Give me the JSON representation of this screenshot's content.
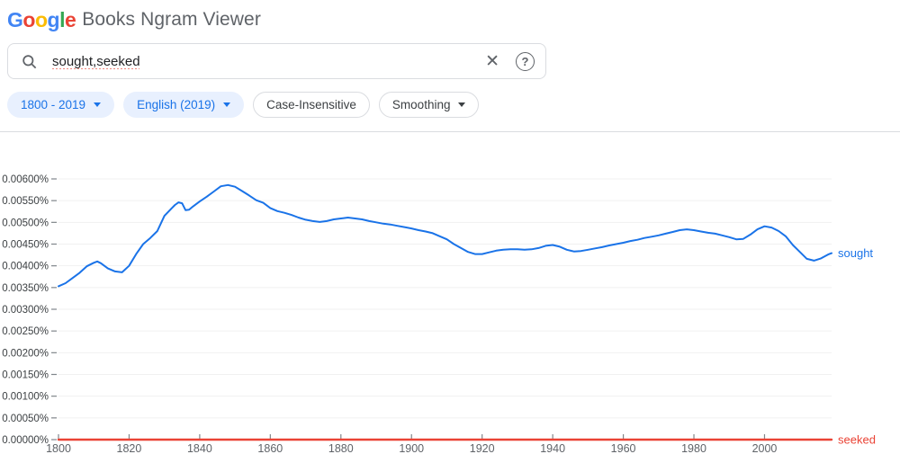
{
  "header": {
    "logo_letters": [
      {
        "ch": "G",
        "color": "#4285F4"
      },
      {
        "ch": "o",
        "color": "#EA4335"
      },
      {
        "ch": "o",
        "color": "#FBBC05"
      },
      {
        "ch": "g",
        "color": "#4285F4"
      },
      {
        "ch": "l",
        "color": "#34A853"
      },
      {
        "ch": "e",
        "color": "#EA4335"
      }
    ],
    "title": "Books Ngram Viewer"
  },
  "search": {
    "query": "sought,seeked",
    "icons": {
      "search": "magnifying-glass",
      "clear": "✕",
      "help": "?"
    }
  },
  "filters": [
    {
      "label": "1800 - 2019",
      "caret": true,
      "variant": "active"
    },
    {
      "label": "English (2019)",
      "caret": true,
      "variant": "active"
    },
    {
      "label": "Case-Insensitive",
      "caret": false,
      "variant": "outlined"
    },
    {
      "label": "Smoothing",
      "caret": true,
      "variant": "outlined"
    }
  ],
  "colors": {
    "accent_blue": "#1a73e8",
    "series_red": "#ea4335",
    "chip_bg": "#e8f0fe",
    "chip_border": "#dadce0",
    "text_dark": "#202124",
    "text_gray": "#5f6368",
    "gridline": "#f1f1f1"
  },
  "chart_data": {
    "type": "line",
    "title": "",
    "xlabel": "",
    "ylabel": "",
    "grid": true,
    "legend_position": "labels-at-line-end",
    "xlim": [
      1800,
      2019
    ],
    "ylim": [
      0,
      0.006
    ],
    "xticks": {
      "values": [
        1800,
        1820,
        1840,
        1860,
        1880,
        1900,
        1920,
        1940,
        1960,
        1980,
        2000
      ],
      "labels": [
        "1800",
        "1820",
        "1840",
        "1860",
        "1880",
        "1900",
        "1920",
        "1940",
        "1960",
        "1980",
        "2000"
      ]
    },
    "yticks": {
      "values": [
        0,
        0.0005,
        0.001,
        0.0015,
        0.002,
        0.0025,
        0.003,
        0.0035,
        0.004,
        0.0045,
        0.005,
        0.0055,
        0.006
      ],
      "labels": [
        "0.00000%",
        "0.00050%",
        "0.00100%",
        "0.00150%",
        "0.00200%",
        "0.00250%",
        "0.00300%",
        "0.00350%",
        "0.00400%",
        "0.00450%",
        "0.00500%",
        "0.00550%",
        "0.00600%"
      ]
    },
    "series": [
      {
        "name": "sought",
        "color": "#1a73e8",
        "points": [
          [
            1800,
            0.00353
          ],
          [
            1802,
            0.0036
          ],
          [
            1804,
            0.00372
          ],
          [
            1806,
            0.00384
          ],
          [
            1808,
            0.00399
          ],
          [
            1810,
            0.00407
          ],
          [
            1811,
            0.0041
          ],
          [
            1812,
            0.00406
          ],
          [
            1814,
            0.00394
          ],
          [
            1816,
            0.00387
          ],
          [
            1818,
            0.00385
          ],
          [
            1820,
            0.004
          ],
          [
            1822,
            0.00427
          ],
          [
            1824,
            0.0045
          ],
          [
            1826,
            0.00464
          ],
          [
            1828,
            0.0048
          ],
          [
            1830,
            0.00515
          ],
          [
            1832,
            0.00532
          ],
          [
            1833,
            0.0054
          ],
          [
            1834,
            0.00546
          ],
          [
            1835,
            0.00544
          ],
          [
            1836,
            0.00528
          ],
          [
            1837,
            0.00529
          ],
          [
            1838,
            0.00536
          ],
          [
            1840,
            0.00548
          ],
          [
            1842,
            0.00559
          ],
          [
            1844,
            0.00571
          ],
          [
            1846,
            0.00583
          ],
          [
            1848,
            0.00586
          ],
          [
            1850,
            0.00582
          ],
          [
            1852,
            0.00572
          ],
          [
            1854,
            0.00562
          ],
          [
            1856,
            0.00551
          ],
          [
            1858,
            0.00545
          ],
          [
            1860,
            0.00533
          ],
          [
            1862,
            0.00526
          ],
          [
            1864,
            0.00522
          ],
          [
            1866,
            0.00517
          ],
          [
            1868,
            0.00511
          ],
          [
            1870,
            0.00506
          ],
          [
            1872,
            0.00503
          ],
          [
            1874,
            0.00501
          ],
          [
            1876,
            0.00503
          ],
          [
            1878,
            0.00507
          ],
          [
            1880,
            0.00509
          ],
          [
            1882,
            0.00511
          ],
          [
            1884,
            0.00509
          ],
          [
            1886,
            0.00507
          ],
          [
            1888,
            0.00503
          ],
          [
            1890,
            0.005
          ],
          [
            1892,
            0.00497
          ],
          [
            1894,
            0.00495
          ],
          [
            1896,
            0.00492
          ],
          [
            1898,
            0.00489
          ],
          [
            1900,
            0.00486
          ],
          [
            1902,
            0.00482
          ],
          [
            1904,
            0.00479
          ],
          [
            1906,
            0.00475
          ],
          [
            1908,
            0.00468
          ],
          [
            1910,
            0.00461
          ],
          [
            1912,
            0.0045
          ],
          [
            1914,
            0.00441
          ],
          [
            1916,
            0.00432
          ],
          [
            1918,
            0.00427
          ],
          [
            1920,
            0.00427
          ],
          [
            1922,
            0.00431
          ],
          [
            1924,
            0.00435
          ],
          [
            1926,
            0.00437
          ],
          [
            1928,
            0.00438
          ],
          [
            1930,
            0.00438
          ],
          [
            1932,
            0.00437
          ],
          [
            1934,
            0.00438
          ],
          [
            1936,
            0.00441
          ],
          [
            1938,
            0.00446
          ],
          [
            1940,
            0.00448
          ],
          [
            1942,
            0.00444
          ],
          [
            1944,
            0.00437
          ],
          [
            1946,
            0.00433
          ],
          [
            1948,
            0.00434
          ],
          [
            1950,
            0.00437
          ],
          [
            1952,
            0.0044
          ],
          [
            1954,
            0.00443
          ],
          [
            1956,
            0.00447
          ],
          [
            1958,
            0.0045
          ],
          [
            1960,
            0.00453
          ],
          [
            1962,
            0.00457
          ],
          [
            1964,
            0.0046
          ],
          [
            1966,
            0.00464
          ],
          [
            1968,
            0.00467
          ],
          [
            1970,
            0.0047
          ],
          [
            1972,
            0.00474
          ],
          [
            1974,
            0.00478
          ],
          [
            1976,
            0.00482
          ],
          [
            1978,
            0.00484
          ],
          [
            1980,
            0.00482
          ],
          [
            1982,
            0.00479
          ],
          [
            1984,
            0.00476
          ],
          [
            1986,
            0.00474
          ],
          [
            1988,
            0.0047
          ],
          [
            1990,
            0.00466
          ],
          [
            1992,
            0.00461
          ],
          [
            1994,
            0.00462
          ],
          [
            1996,
            0.00472
          ],
          [
            1998,
            0.00484
          ],
          [
            2000,
            0.00491
          ],
          [
            2002,
            0.00488
          ],
          [
            2004,
            0.0048
          ],
          [
            2006,
            0.00468
          ],
          [
            2008,
            0.00448
          ],
          [
            2010,
            0.00432
          ],
          [
            2012,
            0.00416
          ],
          [
            2014,
            0.00412
          ],
          [
            2016,
            0.00417
          ],
          [
            2018,
            0.00426
          ],
          [
            2019,
            0.00429
          ]
        ]
      },
      {
        "name": "seeked",
        "color": "#ea4335",
        "points": [
          [
            1800,
            0.0
          ],
          [
            2019,
            0.0
          ]
        ]
      }
    ]
  }
}
